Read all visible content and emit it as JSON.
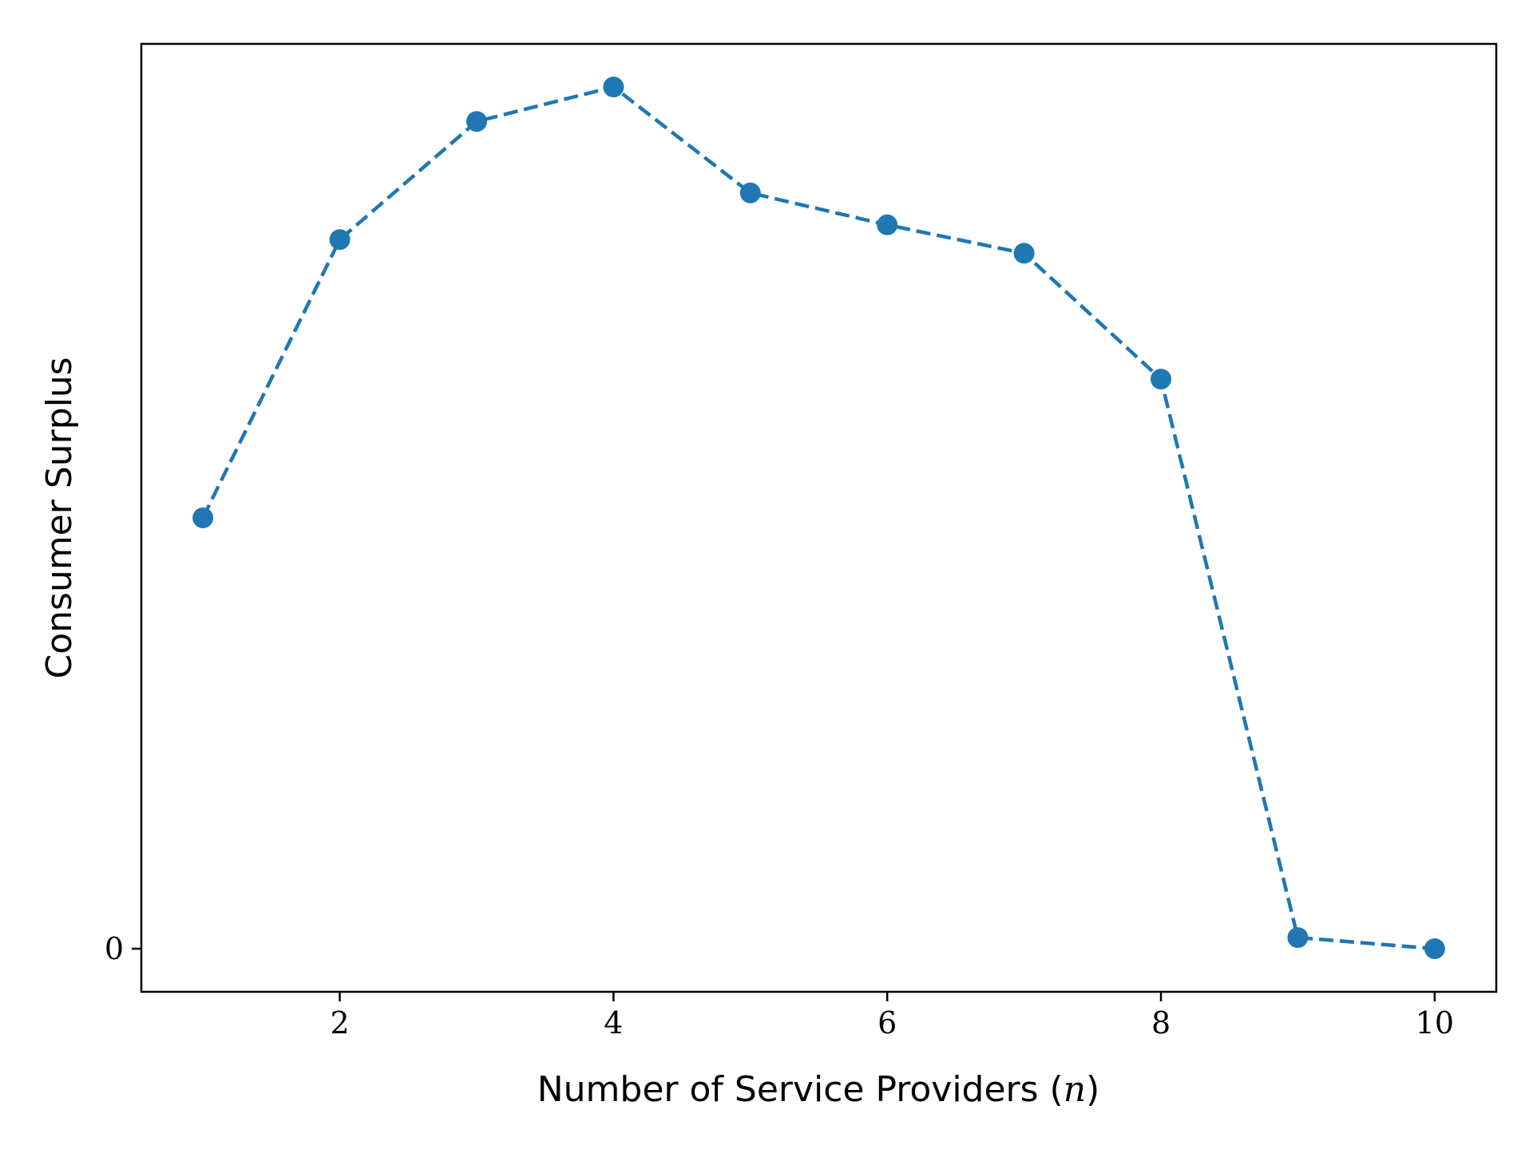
{
  "chart_data": {
    "type": "line",
    "title": "",
    "xlabel_prefix": "Number of Service Providers (",
    "xlabel_var": "n",
    "xlabel_suffix": ")",
    "ylabel": "Consumer Surplus",
    "x": [
      1,
      2,
      3,
      4,
      5,
      6,
      7,
      8,
      9,
      10
    ],
    "series": [
      {
        "values": [
          0.5,
          0.823,
          0.96,
          1.0,
          0.877,
          0.84,
          0.807,
          0.661,
          0.013,
          0.0
        ],
        "color": "#1f77b4",
        "line_style": "dashed",
        "marker": "circle"
      }
    ],
    "xlim": [
      0.55,
      10.45
    ],
    "ylim": [
      -0.05,
      1.05
    ],
    "x_ticks": [
      {
        "value": 2,
        "label": "2"
      },
      {
        "value": 4,
        "label": "4"
      },
      {
        "value": 6,
        "label": "6"
      },
      {
        "value": 8,
        "label": "8"
      },
      {
        "value": 10,
        "label": "10"
      }
    ],
    "y_ticks": [
      {
        "value": 0,
        "label": "0"
      }
    ],
    "grid": false,
    "legend": "none"
  }
}
